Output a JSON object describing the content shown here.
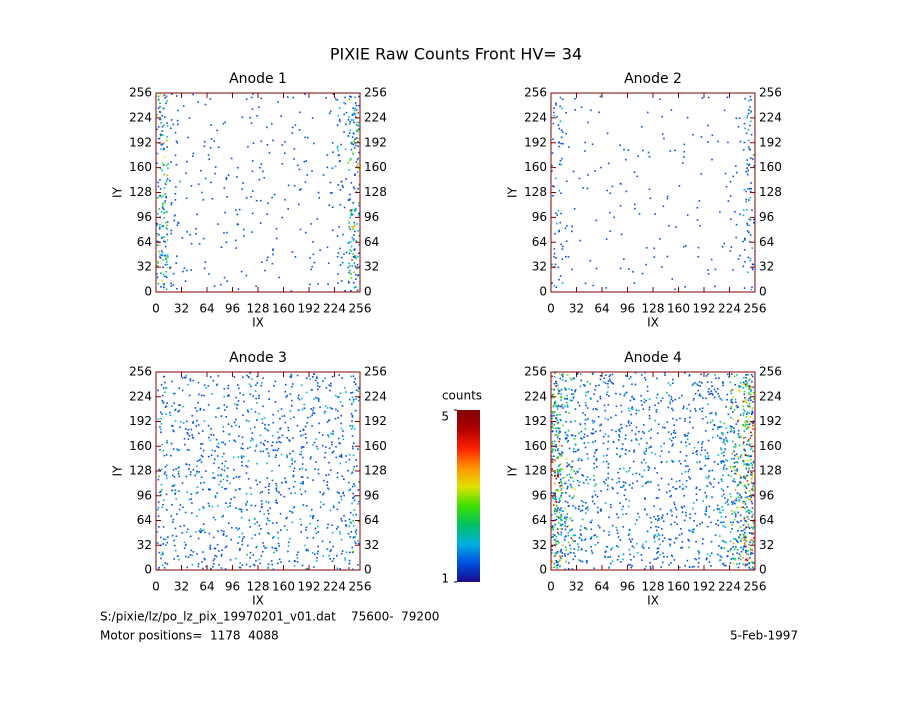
{
  "title": "PIXIE Raw Counts Front HV= 34",
  "colormap": [
    "#1a0a8c",
    "#0050e0",
    "#00b0e0",
    "#00c060",
    "#40e000",
    "#e0e000",
    "#ff9000",
    "#ff2000",
    "#b00000",
    "#800000"
  ],
  "chart_data": [
    {
      "type": "heatmap",
      "title": "Anode 1",
      "xlabel": "IX",
      "ylabel": "IY",
      "xlim": [
        0,
        256
      ],
      "ylim": [
        0,
        256
      ],
      "xticks": [
        0,
        32,
        64,
        96,
        128,
        160,
        192,
        224,
        256
      ],
      "yticks": [
        0,
        32,
        64,
        96,
        128,
        160,
        192,
        224,
        256
      ],
      "values": [
        0.5,
        0.12,
        0.06,
        0.05,
        0.05,
        0.05,
        0.05,
        0.06,
        0.06,
        0.05,
        0.05,
        0.05,
        0.05,
        0.06,
        0.15,
        0.55
      ]
    },
    {
      "type": "heatmap",
      "title": "Anode 2",
      "xlabel": "IX",
      "ylabel": "IY",
      "xlim": [
        0,
        256
      ],
      "ylim": [
        0,
        256
      ],
      "xticks": [
        0,
        32,
        64,
        96,
        128,
        160,
        192,
        224,
        256
      ],
      "yticks": [
        0,
        32,
        64,
        96,
        128,
        160,
        192,
        224,
        256
      ],
      "values": [
        0.2,
        0.05,
        0.03,
        0.03,
        0.03,
        0.03,
        0.03,
        0.03,
        0.03,
        0.03,
        0.03,
        0.03,
        0.03,
        0.03,
        0.06,
        0.25
      ]
    },
    {
      "type": "heatmap",
      "title": "Anode 3",
      "xlabel": "IX",
      "ylabel": "IY",
      "xlim": [
        0,
        256
      ],
      "ylim": [
        0,
        256
      ],
      "xticks": [
        0,
        32,
        64,
        96,
        128,
        160,
        192,
        224,
        256
      ],
      "yticks": [
        0,
        32,
        64,
        96,
        128,
        160,
        192,
        224,
        256
      ],
      "values": [
        0.25,
        0.2,
        0.2,
        0.2,
        0.2,
        0.2,
        0.2,
        0.22,
        0.22,
        0.2,
        0.2,
        0.2,
        0.2,
        0.2,
        0.2,
        0.3
      ]
    },
    {
      "type": "heatmap",
      "title": "Anode 4",
      "xlabel": "IX",
      "ylabel": "IY",
      "xlim": [
        0,
        256
      ],
      "ylim": [
        0,
        256
      ],
      "xticks": [
        0,
        32,
        64,
        96,
        128,
        160,
        192,
        224,
        256
      ],
      "yticks": [
        0,
        32,
        64,
        96,
        128,
        160,
        192,
        224,
        256
      ],
      "values": [
        0.9,
        0.45,
        0.3,
        0.25,
        0.22,
        0.22,
        0.22,
        0.22,
        0.22,
        0.22,
        0.22,
        0.22,
        0.25,
        0.35,
        0.55,
        0.95
      ]
    }
  ],
  "colorbar": {
    "label": "counts",
    "lim": [
      1,
      5
    ],
    "ticks": [
      1,
      5
    ]
  },
  "footer": {
    "file": "S:/pixie/lz/po_lz_pix_19970201_v01.dat    75600-  79200",
    "motor": "Motor positions=  1178  4088",
    "date": "5-Feb-1997"
  }
}
